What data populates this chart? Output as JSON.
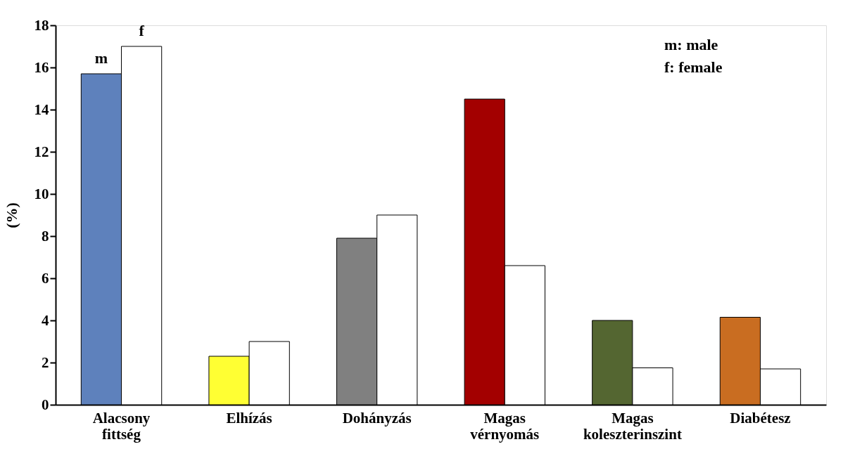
{
  "chart_data": {
    "type": "bar",
    "ylabel": "(%)",
    "categories": [
      "Alacsony fittség",
      "Elhízás",
      "Dohányzás",
      "Magas vérnyomás",
      "Magas koleszterinszint",
      "Diabétesz"
    ],
    "series": [
      {
        "name": "m",
        "colors": [
          "#5e81bc",
          "#ffff33",
          "#808080",
          "#a30000",
          "#546631",
          "#c96d21"
        ],
        "values": [
          15.7,
          2.3,
          7.9,
          14.5,
          4.0,
          4.15
        ]
      },
      {
        "name": "f",
        "color": "#ffffff",
        "values": [
          17.0,
          3.0,
          9.0,
          6.6,
          1.75,
          1.7
        ]
      }
    ],
    "ylim": [
      0,
      18
    ],
    "yticks": [
      0,
      2,
      4,
      6,
      8,
      10,
      12,
      14,
      16,
      18
    ],
    "grid": false,
    "annotations": [
      "m: male",
      "f: female"
    ]
  }
}
